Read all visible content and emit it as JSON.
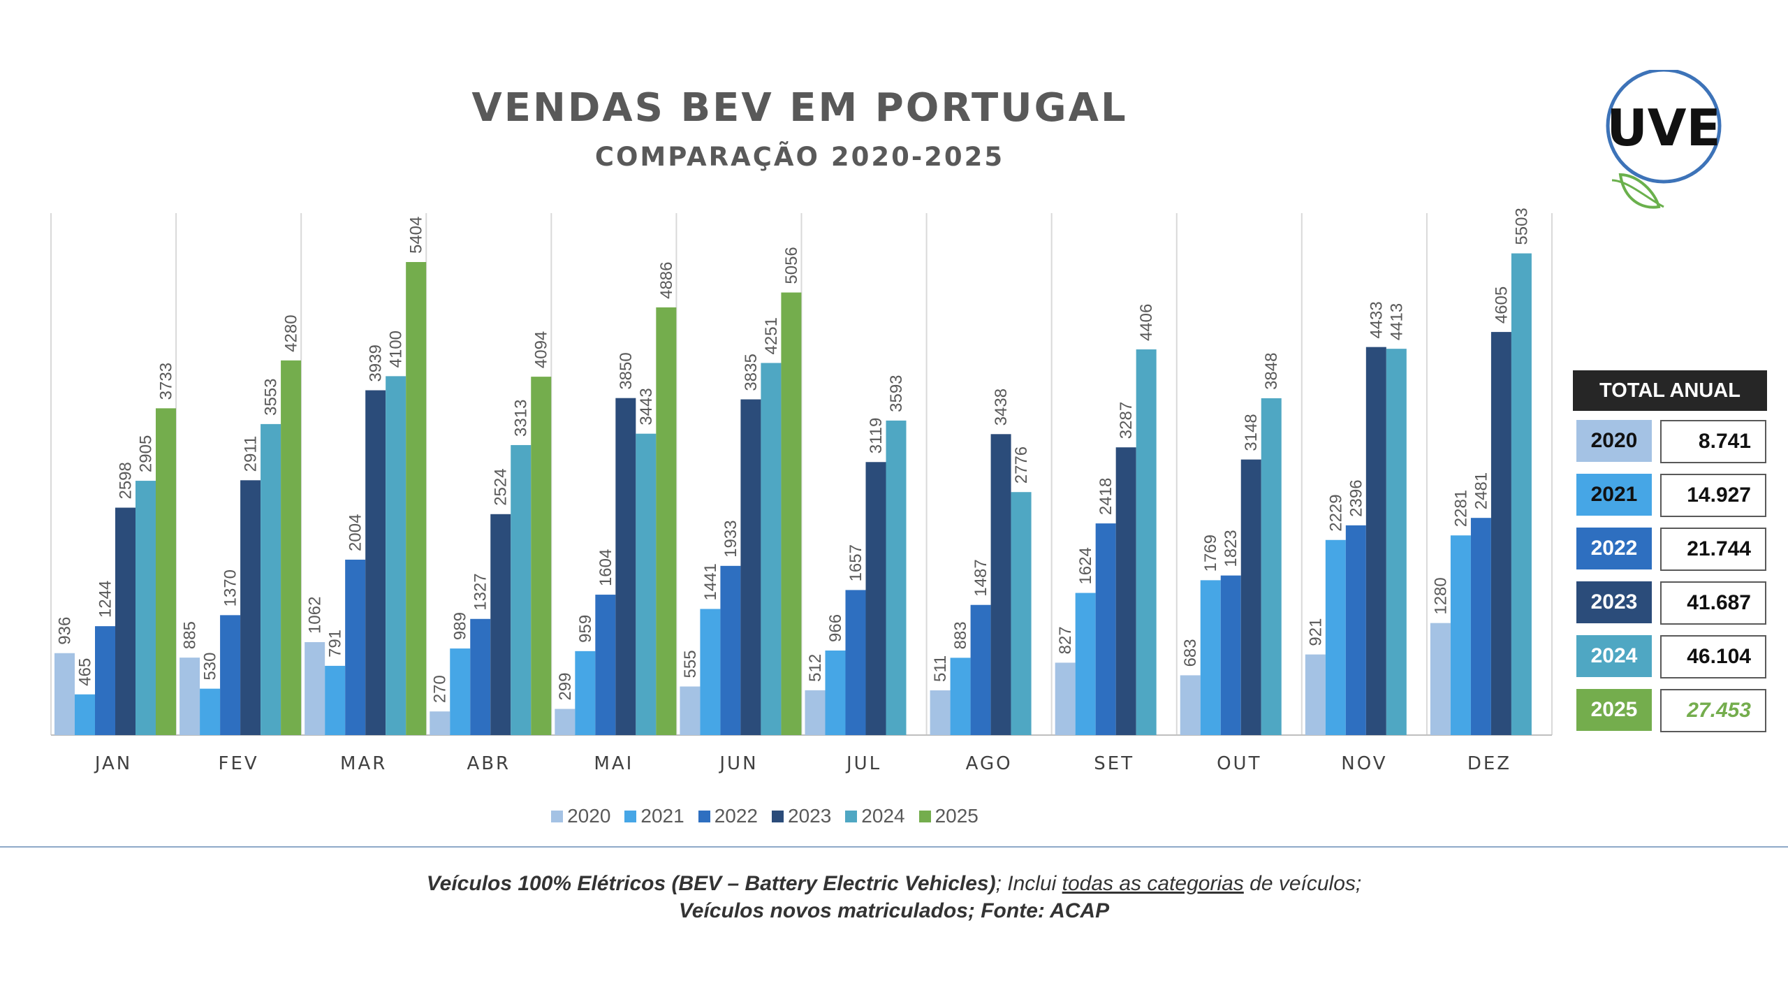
{
  "header": {
    "title": "VENDAS BEV EM PORTUGAL",
    "subtitle": "COMPARAÇÃO 2020-2025"
  },
  "logo": {
    "text": "UVE",
    "icon": "plug-leaf-logo"
  },
  "colors": {
    "2020": "#a4c2e4",
    "2021": "#46a6e6",
    "2022": "#2e6fc0",
    "2023": "#2b4c7a",
    "2024": "#4fa7c3",
    "2025": "#74ad4d"
  },
  "chart_data": {
    "type": "bar",
    "categories": [
      "JAN",
      "FEV",
      "MAR",
      "ABR",
      "MAI",
      "JUN",
      "JUL",
      "AGO",
      "SET",
      "OUT",
      "NOV",
      "DEZ"
    ],
    "series": [
      {
        "name": "2020",
        "values": [
          936,
          885,
          1062,
          270,
          299,
          555,
          512,
          511,
          827,
          683,
          921,
          1280
        ]
      },
      {
        "name": "2021",
        "values": [
          465,
          530,
          791,
          989,
          959,
          1441,
          966,
          883,
          1624,
          1769,
          2229,
          2281
        ]
      },
      {
        "name": "2022",
        "values": [
          1244,
          1370,
          2004,
          1327,
          1604,
          1933,
          1657,
          1487,
          2418,
          1823,
          2396,
          2481
        ]
      },
      {
        "name": "2023",
        "values": [
          2598,
          2911,
          3939,
          2524,
          3850,
          3835,
          3119,
          3438,
          3287,
          3148,
          4433,
          4605
        ]
      },
      {
        "name": "2024",
        "values": [
          2905,
          3553,
          4100,
          3313,
          3443,
          4251,
          3593,
          2776,
          4406,
          3848,
          4413,
          5503
        ]
      },
      {
        "name": "2025",
        "values": [
          3733,
          4280,
          5404,
          4094,
          4886,
          5056,
          null,
          null,
          null,
          null,
          null,
          null
        ]
      }
    ],
    "ylim": [
      0,
      6000
    ],
    "grid": false,
    "legend": "bottom"
  },
  "totals": {
    "header": "TOTAL ANUAL",
    "rows": [
      {
        "year": "2020",
        "value": "8.741"
      },
      {
        "year": "2021",
        "value": "14.927"
      },
      {
        "year": "2022",
        "value": "21.744"
      },
      {
        "year": "2023",
        "value": "41.687"
      },
      {
        "year": "2024",
        "value": "46.104"
      },
      {
        "year": "2025",
        "value": "27.453"
      }
    ]
  },
  "footnote": {
    "line1_bold": "Veículos 100% Elétricos (BEV – Battery Electric Vehicles)",
    "line1_mid": "; Inclui ",
    "line1_underlined": "todas as categorias",
    "line1_end": " de veículos;",
    "line2": "Veículos novos matriculados; Fonte: ACAP"
  }
}
